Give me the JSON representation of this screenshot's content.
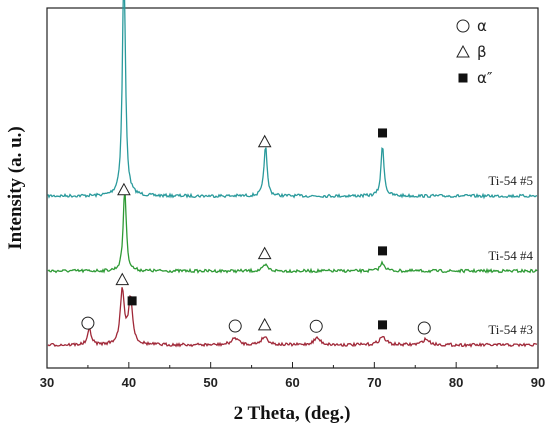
{
  "chart_data": {
    "type": "line",
    "xlabel": "2 Theta, (deg.)",
    "ylabel": "Intensity (a. u.)",
    "xlim": [
      30,
      90
    ],
    "x_ticks": [
      30,
      40,
      50,
      60,
      70,
      80,
      90
    ],
    "legend": [
      {
        "symbol": "circle-open",
        "label": "α"
      },
      {
        "symbol": "triangle-open",
        "label": "β"
      },
      {
        "symbol": "square-filled",
        "label": "α″"
      }
    ],
    "legend_position": "top-right",
    "series": [
      {
        "name": "Ti-54 #5",
        "color": "#2a9a9c",
        "peaks": [
          {
            "x": 39.4,
            "height": 1.0,
            "width": 0.22
          },
          {
            "x": 56.7,
            "height": 0.22,
            "width": 0.22
          },
          {
            "x": 71.0,
            "height": 0.22,
            "width": 0.22
          }
        ],
        "markers": [
          {
            "symbol": "triangle-open",
            "x": 39.3
          },
          {
            "symbol": "triangle-open",
            "x": 56.6
          },
          {
            "symbol": "square-filled",
            "x": 71.0
          }
        ]
      },
      {
        "name": "Ti-54 #4",
        "color": "#2e9a35",
        "peaks": [
          {
            "x": 39.5,
            "height": 0.36,
            "width": 0.22
          },
          {
            "x": 56.7,
            "height": 0.025,
            "width": 0.35
          },
          {
            "x": 71.0,
            "height": 0.035,
            "width": 0.35
          }
        ],
        "markers": [
          {
            "symbol": "triangle-open",
            "x": 39.4
          },
          {
            "symbol": "triangle-open",
            "x": 56.6
          },
          {
            "symbol": "square-filled",
            "x": 71.0
          }
        ]
      },
      {
        "name": "Ti-54 #3",
        "color": "#a02838",
        "peaks": [
          {
            "x": 35.2,
            "height": 0.07,
            "width": 0.25
          },
          {
            "x": 39.2,
            "height": 0.23,
            "width": 0.3
          },
          {
            "x": 40.2,
            "height": 0.2,
            "width": 0.3
          },
          {
            "x": 53.0,
            "height": 0.03,
            "width": 0.5
          },
          {
            "x": 56.6,
            "height": 0.035,
            "width": 0.5
          },
          {
            "x": 63.0,
            "height": 0.03,
            "width": 0.5
          },
          {
            "x": 71.0,
            "height": 0.035,
            "width": 0.5
          },
          {
            "x": 76.3,
            "height": 0.025,
            "width": 0.5
          }
        ],
        "markers": [
          {
            "symbol": "circle-open",
            "x": 35.0
          },
          {
            "symbol": "triangle-open",
            "x": 39.2
          },
          {
            "symbol": "square-filled",
            "x": 40.4
          },
          {
            "symbol": "circle-open",
            "x": 53.0
          },
          {
            "symbol": "triangle-open",
            "x": 56.6
          },
          {
            "symbol": "circle-open",
            "x": 62.9
          },
          {
            "symbol": "square-filled",
            "x": 71.0
          },
          {
            "symbol": "circle-open",
            "x": 76.1
          }
        ]
      }
    ]
  }
}
